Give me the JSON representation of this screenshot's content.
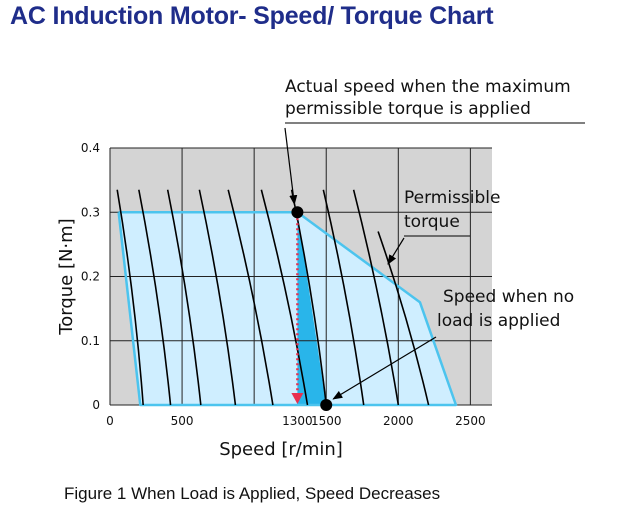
{
  "header": {
    "title": "AC Induction Motor- Speed/ Torque Chart"
  },
  "caption": "Figure 1   When Load is Applied, Speed Decreases",
  "colors": {
    "background": "#ffffff",
    "title": "#1f2d8a",
    "plot_area": "#d4d4d4",
    "region_fill": "#cfeeff",
    "boundary_line": "#4cc4ee",
    "wedge_fill": "#29b5ea",
    "arrow_dotted": "#e8304f",
    "curves": "#000000"
  },
  "chart_data": {
    "type": "line",
    "xlabel": "Speed [r/min]",
    "ylabel": "Torque [N·m]",
    "xlim": [
      0,
      2650
    ],
    "ylim": [
      0,
      0.4
    ],
    "x_ticks": [
      {
        "value": 0,
        "label": "0"
      },
      {
        "value": 500,
        "label": "500"
      },
      {
        "value": 1300,
        "label": "1300"
      },
      {
        "value": 1500,
        "label": "1500"
      },
      {
        "value": 2000,
        "label": "2000"
      },
      {
        "value": 2500,
        "label": "2500"
      }
    ],
    "x_grid": [
      0,
      500,
      1000,
      1500,
      2000,
      2500
    ],
    "y_ticks": [
      {
        "value": 0,
        "label": "0"
      },
      {
        "value": 0.1,
        "label": "0.1"
      },
      {
        "value": 0.2,
        "label": "0.2"
      },
      {
        "value": 0.3,
        "label": "0.3"
      },
      {
        "value": 0.4,
        "label": "0.4"
      }
    ],
    "grid": true,
    "permissible_region": {
      "x": [
        60,
        1300,
        2150,
        2400,
        210,
        60
      ],
      "y": [
        0.3,
        0.3,
        0.16,
        0,
        0,
        0.3
      ]
    },
    "speed_torque_curves": [
      {
        "x": [
          50,
          230
        ],
        "y": [
          0.335,
          0
        ]
      },
      {
        "x": [
          200,
          420
        ],
        "y": [
          0.335,
          0
        ]
      },
      {
        "x": [
          400,
          630
        ],
        "y": [
          0.335,
          0
        ]
      },
      {
        "x": [
          620,
          870
        ],
        "y": [
          0.335,
          0
        ]
      },
      {
        "x": [
          820,
          1130
        ],
        "y": [
          0.335,
          0
        ]
      },
      {
        "x": [
          1050,
          1370
        ],
        "y": [
          0.335,
          0
        ]
      },
      {
        "x": [
          1260,
          1500
        ],
        "y": [
          0.335,
          0
        ]
      },
      {
        "x": [
          1480,
          1760
        ],
        "y": [
          0.335,
          0
        ]
      },
      {
        "x": [
          1690,
          2000
        ],
        "y": [
          0.335,
          0
        ]
      },
      {
        "x": [
          1860,
          2210
        ],
        "y": [
          0.27,
          0
        ]
      }
    ],
    "max_torque_point": {
      "x": 1300,
      "y": 0.3
    },
    "no_load_point": {
      "x": 1500,
      "y": 0
    },
    "speed_drop_arrow": {
      "x": 1300,
      "y_from": 0.3,
      "y_to": 0
    },
    "annotations": [
      {
        "lines": [
          "Actual speed when the maximum",
          "permissible torque is applied"
        ],
        "target": "max_torque_point"
      },
      {
        "lines": [
          "Permissible",
          "torque"
        ],
        "target": "permissible_boundary"
      },
      {
        "lines": [
          "Speed when no",
          "load is applied"
        ],
        "target": "no_load_point"
      }
    ]
  }
}
